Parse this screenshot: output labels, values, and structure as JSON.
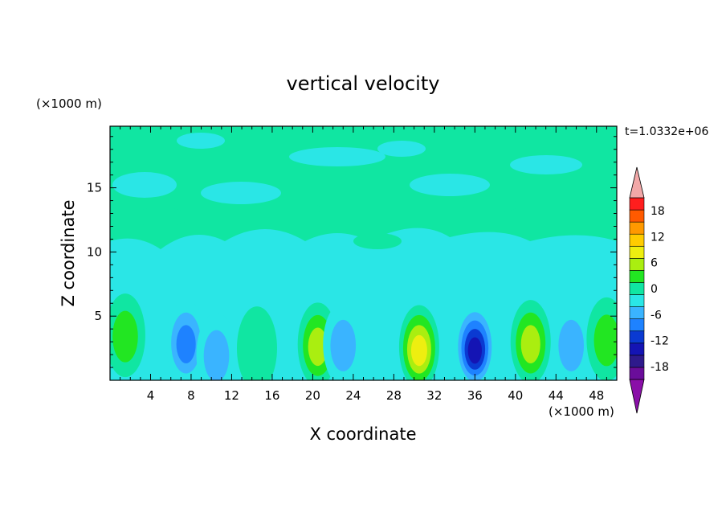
{
  "chart_data": {
    "type": "heatmap",
    "subtype": "filled-contour",
    "title": "vertical velocity",
    "xlabel": "X coordinate",
    "ylabel": "Z coordinate",
    "x_unit": "(×1000 m)",
    "y_unit": "(×1000 m)",
    "time_label": "t=1.0332e+06",
    "xlim": [
      0,
      50
    ],
    "ylim": [
      0,
      19.8
    ],
    "x_ticks": [
      4,
      8,
      12,
      16,
      20,
      24,
      28,
      32,
      36,
      40,
      44,
      48
    ],
    "y_ticks": [
      5,
      10,
      15
    ],
    "colorbar": {
      "levels": [
        -21,
        -18,
        -15,
        -12,
        -9,
        -6,
        -3,
        0,
        3,
        6,
        9,
        12,
        15,
        18,
        21
      ],
      "tick_labels": [
        "18",
        "12",
        "6",
        "0",
        "-6",
        "-12",
        "-18"
      ],
      "tick_values": [
        18,
        12,
        6,
        0,
        -6,
        -12,
        -18
      ],
      "colors": [
        "#6a0d9a",
        "#2e1a8c",
        "#1414b4",
        "#0a3ad2",
        "#1e82ff",
        "#3ab4ff",
        "#2ae6e6",
        "#10e6a2",
        "#22e622",
        "#aaee10",
        "#eeee10",
        "#ffcc00",
        "#ff9900",
        "#ff5a00",
        "#ff1e1e",
        "#ffa0a0"
      ],
      "under_color": "#8a0fa8",
      "over_color": "#f2a8a8"
    },
    "cells": [
      {
        "x": 1.5,
        "z": 3.5,
        "value": 6
      },
      {
        "x": 7.5,
        "z": 3.0,
        "value": -9
      },
      {
        "x": 10.5,
        "z": 2.0,
        "value": -6
      },
      {
        "x": 14.5,
        "z": 2.5,
        "value": 3
      },
      {
        "x": 20.5,
        "z": 2.8,
        "value": 9
      },
      {
        "x": 23.0,
        "z": 2.8,
        "value": -8
      },
      {
        "x": 30.5,
        "z": 2.6,
        "value": 14
      },
      {
        "x": 36.0,
        "z": 2.7,
        "value": -15
      },
      {
        "x": 41.5,
        "z": 3.0,
        "value": 10
      },
      {
        "x": 45.5,
        "z": 2.8,
        "value": -7
      },
      {
        "x": 49.0,
        "z": 3.2,
        "value": 6
      }
    ]
  }
}
